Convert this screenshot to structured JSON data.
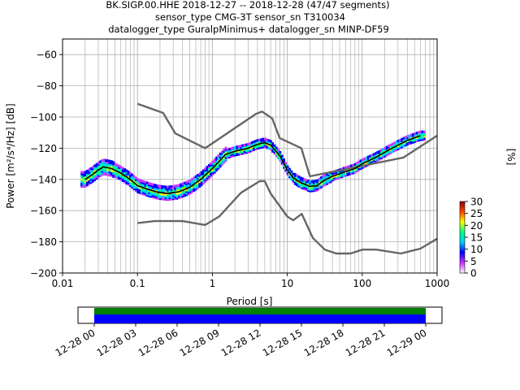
{
  "title_lines": [
    "BK.SIGP.00.HHE   2018-12-27 -- 2018-12-28  (47/47 segments)",
    "sensor_type CMG-3T sensor_sn T310034",
    "datalogger_type GuralpMinimus+ datalogger_sn MINP-DF59"
  ],
  "chart_data": [
    {
      "type": "heatmap",
      "xlabel": "Period [s]",
      "ylabel": "Power [m²/s⁴/Hz] [dB]",
      "xscale": "log",
      "xlim": [
        0.01,
        1000
      ],
      "ylim": [
        -200,
        -50
      ],
      "xticks": [
        0.01,
        0.1,
        1,
        10,
        100,
        1000
      ],
      "xtick_labels": [
        "0.01",
        "0.1",
        "1",
        "10",
        "100",
        "1000"
      ],
      "yticks": [
        -200,
        -180,
        -160,
        -140,
        -120,
        -100,
        -80,
        -60
      ],
      "ytick_labels": [
        "−200",
        "−180",
        "−160",
        "−140",
        "−120",
        "−100",
        "−80",
        "−60"
      ],
      "grid": true,
      "series": [
        {
          "role": "high-noise-model",
          "color": "#666666",
          "x": [
            0.1,
            0.22,
            0.32,
            0.8,
            3.8,
            4.6,
            6.3,
            7.9,
            15.4,
            20,
            354.8,
            1000
          ],
          "y": [
            -91.5,
            -97.4,
            -110.5,
            -120,
            -98,
            -96.5,
            -101,
            -113.5,
            -120,
            -138,
            -126,
            -112
          ]
        },
        {
          "role": "low-noise-model",
          "color": "#666666",
          "x": [
            0.1,
            0.17,
            0.4,
            0.8,
            1.24,
            2.4,
            4.3,
            5,
            6,
            10,
            12,
            15.6,
            21.9,
            31.6,
            45,
            70,
            101,
            154,
            328,
            600,
            1000
          ],
          "y": [
            -168,
            -166.7,
            -166.7,
            -169.2,
            -163.7,
            -148.6,
            -141.1,
            -141.1,
            -149,
            -163.8,
            -166.2,
            -162.1,
            -177.5,
            -185,
            -187.5,
            -187.5,
            -185,
            -185,
            -187.5,
            -184.4,
            -178
          ]
        },
        {
          "role": "mode-line",
          "color": "#000000",
          "x": [
            0.02,
            0.025,
            0.03,
            0.035,
            0.045,
            0.06,
            0.08,
            0.1,
            0.13,
            0.18,
            0.25,
            0.35,
            0.5,
            0.7,
            1,
            1.5,
            2,
            3,
            4,
            5,
            6,
            8,
            10,
            12,
            15,
            20,
            25,
            30,
            40,
            60,
            80,
            100,
            150,
            250,
            400,
            600
          ],
          "y": [
            -140,
            -137,
            -134,
            -132,
            -133,
            -136,
            -140,
            -144,
            -146,
            -148,
            -149,
            -148,
            -145,
            -140,
            -133,
            -124,
            -122,
            -120,
            -117.5,
            -116.5,
            -118,
            -125,
            -134,
            -139,
            -142,
            -144.5,
            -144,
            -141,
            -138,
            -135,
            -133,
            -130,
            -126,
            -120,
            -115,
            -112
          ]
        }
      ],
      "colorbar": {
        "label": "[%]",
        "min": 0,
        "max": 30,
        "ticks": [
          0,
          5,
          10,
          15,
          20,
          25,
          30
        ],
        "tick_labels": [
          "0",
          "5",
          "10",
          "15",
          "20",
          "25",
          "30"
        ],
        "colors": [
          "#ffffff",
          "#cc33ff",
          "#0000ff",
          "#00ccff",
          "#00ff88",
          "#ffff00",
          "#ff4400",
          "#8b0000"
        ]
      }
    },
    {
      "type": "timeline",
      "xticks": [
        "12-28 00",
        "12-28 03",
        "12-28 06",
        "12-28 09",
        "12-28 12",
        "12-28 15",
        "12-28 18",
        "12-28 21",
        "12-29 00"
      ],
      "xlim": [
        "12-27 22:30",
        "12-29 01:20"
      ],
      "bars": [
        {
          "color": "#008000",
          "start": "12-28 00:00",
          "end": "12-29 00:00"
        },
        {
          "color": "#0000ff",
          "start": "12-28 00:00",
          "end": "12-29 00:00"
        }
      ]
    }
  ]
}
